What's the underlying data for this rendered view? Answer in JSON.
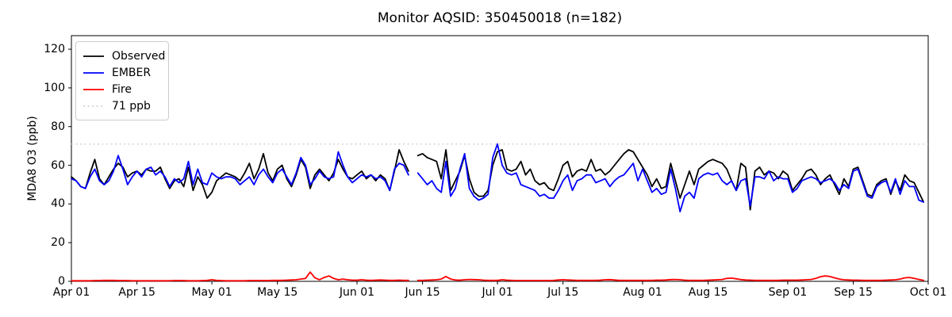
{
  "figure": {
    "title": "Monitor AQSID: 350450018 (n=182)"
  },
  "legend": {
    "position": "upper left",
    "entries": [
      {
        "label": "Observed",
        "color": "#000000",
        "style": "solid"
      },
      {
        "label": "EMBER",
        "color": "#0000ff",
        "style": "solid"
      },
      {
        "label": "Fire",
        "color": "#ff0000",
        "style": "solid"
      },
      {
        "label": "71 ppb",
        "color": "#d3d3d3",
        "style": "dotted"
      }
    ]
  },
  "chart_data": {
    "type": "line",
    "title": "Monitor AQSID: 350450018 (n=182)",
    "xlabel": "",
    "ylabel": "MDA8 O3 (ppb)",
    "ylim": [
      0,
      127
    ],
    "yticks": [
      0,
      20,
      40,
      60,
      80,
      100,
      120
    ],
    "x_unit": "days since Apr 01",
    "x_range_days": [
      0,
      183
    ],
    "x_ticks": [
      {
        "label": "Apr 01",
        "day": 0
      },
      {
        "label": "Apr 15",
        "day": 14
      },
      {
        "label": "May 01",
        "day": 30
      },
      {
        "label": "May 15",
        "day": 44
      },
      {
        "label": "Jun 01",
        "day": 61
      },
      {
        "label": "Jun 15",
        "day": 75
      },
      {
        "label": "Jul 01",
        "day": 91
      },
      {
        "label": "Jul 15",
        "day": 105
      },
      {
        "label": "Aug 01",
        "day": 122
      },
      {
        "label": "Aug 15",
        "day": 136
      },
      {
        "label": "Sep 01",
        "day": 153
      },
      {
        "label": "Sep 15",
        "day": 167
      },
      {
        "label": "Oct 01",
        "day": 183
      }
    ],
    "missing_day": "Jun 13",
    "grid": false,
    "threshold": {
      "value": 71,
      "label": "71 ppb",
      "color": "#d3d3d3",
      "style": "dotted"
    },
    "series": [
      {
        "name": "Observed",
        "color": "#000000",
        "values": [
          54,
          52,
          49,
          48,
          56,
          63,
          53,
          50,
          54,
          58,
          61,
          59,
          54,
          56,
          57,
          55,
          58,
          57,
          57,
          59,
          53,
          48,
          52,
          53,
          49,
          59,
          47,
          54,
          50,
          43,
          46,
          52,
          54,
          56,
          55,
          54,
          52,
          56,
          61,
          53,
          58,
          66,
          56,
          52,
          58,
          60,
          53,
          49,
          55,
          63,
          59,
          48,
          55,
          58,
          55,
          52,
          56,
          63,
          58,
          54,
          53,
          55,
          57,
          53,
          55,
          52,
          55,
          53,
          47,
          57,
          68,
          62,
          57,
          null,
          65,
          66,
          64,
          63,
          62,
          53,
          68,
          47,
          52,
          57,
          65,
          53,
          46,
          44,
          44,
          47,
          60,
          67,
          68,
          58,
          57,
          58,
          62,
          55,
          58,
          52,
          50,
          51,
          48,
          47,
          53,
          60,
          62,
          54,
          57,
          58,
          57,
          63,
          57,
          58,
          55,
          57,
          60,
          63,
          66,
          68,
          67,
          63,
          59,
          55,
          49,
          53,
          48,
          49,
          61,
          52,
          43,
          50,
          57,
          50,
          58,
          60,
          62,
          63,
          62,
          61,
          58,
          52,
          47,
          61,
          59,
          37,
          57,
          59,
          55,
          57,
          56,
          53,
          57,
          55,
          47,
          50,
          53,
          57,
          58,
          55,
          50,
          53,
          55,
          50,
          45,
          53,
          49,
          58,
          59,
          52,
          45,
          44,
          50,
          52,
          53,
          45,
          52,
          47,
          55,
          52,
          51,
          46,
          41
        ]
      },
      {
        "name": "EMBER",
        "color": "#0000ff",
        "values": [
          53,
          52,
          49,
          48,
          54,
          58,
          52,
          50,
          52,
          57,
          65,
          58,
          50,
          54,
          57,
          54,
          58,
          59,
          55,
          57,
          54,
          49,
          53,
          51,
          53,
          62,
          50,
          58,
          51,
          50,
          56,
          54,
          53,
          54,
          54,
          53,
          50,
          52,
          54,
          50,
          55,
          58,
          54,
          51,
          56,
          58,
          54,
          50,
          56,
          64,
          60,
          50,
          53,
          57,
          54,
          53,
          54,
          67,
          60,
          54,
          51,
          53,
          55,
          54,
          55,
          53,
          54,
          52,
          47,
          58,
          61,
          60,
          55,
          null,
          56,
          53,
          50,
          52,
          48,
          46,
          62,
          44,
          48,
          58,
          66,
          48,
          44,
          42,
          43,
          45,
          64,
          71,
          60,
          56,
          55,
          56,
          50,
          49,
          48,
          47,
          44,
          45,
          43,
          43,
          47,
          52,
          55,
          47,
          52,
          53,
          55,
          55,
          51,
          52,
          53,
          49,
          52,
          54,
          55,
          58,
          61,
          52,
          58,
          52,
          46,
          48,
          45,
          46,
          58,
          48,
          36,
          44,
          46,
          43,
          53,
          55,
          56,
          55,
          56,
          52,
          50,
          52,
          47,
          52,
          53,
          39,
          54,
          54,
          53,
          57,
          52,
          54,
          53,
          53,
          46,
          48,
          52,
          53,
          54,
          53,
          51,
          52,
          53,
          51,
          47,
          50,
          48,
          57,
          58,
          51,
          44,
          43,
          49,
          51,
          52,
          46,
          53,
          45,
          52,
          49,
          49,
          42,
          41
        ]
      },
      {
        "name": "Fire",
        "color": "#ff0000",
        "values": [
          0.3,
          0.3,
          0.3,
          0.3,
          0.3,
          0.4,
          0.4,
          0.5,
          0.5,
          0.5,
          0.4,
          0.4,
          0.4,
          0.3,
          0.3,
          0.3,
          0.3,
          0.3,
          0.3,
          0.3,
          0.3,
          0.3,
          0.4,
          0.4,
          0.4,
          0.3,
          0.3,
          0.3,
          0.4,
          0.5,
          0.8,
          0.5,
          0.4,
          0.3,
          0.3,
          0.3,
          0.3,
          0.3,
          0.4,
          0.4,
          0.4,
          0.4,
          0.4,
          0.5,
          0.5,
          0.5,
          0.6,
          0.7,
          0.8,
          1.2,
          1.5,
          4.8,
          1.8,
          0.8,
          2.0,
          2.8,
          1.5,
          0.8,
          1.2,
          0.8,
          0.6,
          0.6,
          0.8,
          0.6,
          0.5,
          0.6,
          0.7,
          0.6,
          0.5,
          0.5,
          0.6,
          0.5,
          0.5,
          null,
          0.5,
          0.5,
          0.6,
          0.7,
          0.8,
          1.2,
          2.5,
          1.2,
          0.7,
          0.6,
          0.8,
          1.0,
          0.9,
          0.8,
          0.6,
          0.5,
          0.5,
          0.5,
          0.8,
          0.6,
          0.5,
          0.4,
          0.4,
          0.4,
          0.4,
          0.4,
          0.4,
          0.4,
          0.4,
          0.5,
          0.7,
          0.8,
          0.7,
          0.6,
          0.5,
          0.5,
          0.5,
          0.5,
          0.5,
          0.6,
          0.8,
          0.9,
          0.7,
          0.5,
          0.5,
          0.5,
          0.5,
          0.5,
          0.5,
          0.5,
          0.5,
          0.6,
          0.6,
          0.7,
          0.9,
          1.0,
          0.8,
          0.6,
          0.5,
          0.5,
          0.5,
          0.5,
          0.6,
          0.7,
          0.8,
          1.0,
          1.5,
          1.7,
          1.3,
          0.9,
          0.7,
          0.6,
          0.5,
          0.5,
          0.5,
          0.5,
          0.5,
          0.5,
          0.6,
          0.6,
          0.6,
          0.6,
          0.7,
          0.8,
          1.0,
          1.5,
          2.4,
          2.8,
          2.5,
          1.8,
          1.2,
          0.8,
          0.7,
          0.6,
          0.6,
          0.5,
          0.5,
          0.5,
          0.5,
          0.5,
          0.6,
          0.7,
          0.8,
          1.2,
          1.8,
          2.0,
          1.5,
          1.0,
          0.5
        ]
      }
    ]
  }
}
